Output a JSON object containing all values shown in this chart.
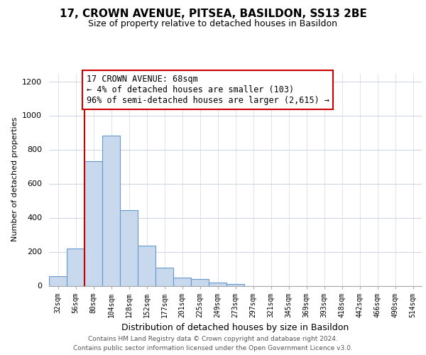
{
  "title": "17, CROWN AVENUE, PITSEA, BASILDON, SS13 2BE",
  "subtitle": "Size of property relative to detached houses in Basildon",
  "xlabel": "Distribution of detached houses by size in Basildon",
  "ylabel": "Number of detached properties",
  "bin_labels": [
    "32sqm",
    "56sqm",
    "80sqm",
    "104sqm",
    "128sqm",
    "152sqm",
    "177sqm",
    "201sqm",
    "225sqm",
    "249sqm",
    "273sqm",
    "297sqm",
    "321sqm",
    "345sqm",
    "369sqm",
    "393sqm",
    "418sqm",
    "442sqm",
    "466sqm",
    "490sqm",
    "514sqm"
  ],
  "bar_values": [
    55,
    220,
    730,
    880,
    445,
    235,
    105,
    50,
    40,
    20,
    10,
    0,
    0,
    0,
    0,
    0,
    0,
    0,
    0,
    0,
    0
  ],
  "bar_color": "#c8d8ed",
  "bar_edge_color": "#6699cc",
  "vline_x": 1.5,
  "vline_color": "#cc0000",
  "annotation_text": "17 CROWN AVENUE: 68sqm\n← 4% of detached houses are smaller (103)\n96% of semi-detached houses are larger (2,615) →",
  "annotation_box_color": "#ffffff",
  "annotation_box_edge": "#cc0000",
  "footer_text": "Contains HM Land Registry data © Crown copyright and database right 2024.\nContains public sector information licensed under the Open Government Licence v3.0.",
  "ylim": [
    0,
    1250
  ],
  "yticks": [
    0,
    200,
    400,
    600,
    800,
    1000,
    1200
  ],
  "background_color": "#ffffff",
  "grid_color": "#d0d8e8"
}
